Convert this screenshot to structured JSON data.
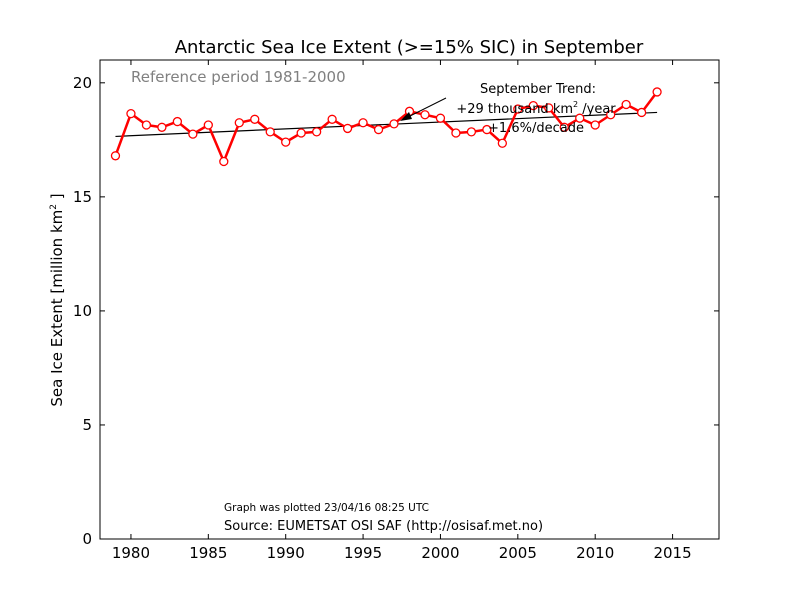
{
  "chart_data": {
    "type": "line",
    "title": "Antarctic Sea Ice Extent (>=15% SIC) in September",
    "subtitle": "Reference period 1981-2000",
    "xlabel": "",
    "ylabel": "Sea Ice Extent [million km",
    "ylabel_sup": "2",
    "ylabel_end": " ]",
    "xlim": [
      1978,
      2018
    ],
    "ylim": [
      0,
      21
    ],
    "xticks": [
      1980,
      1985,
      1990,
      1995,
      2000,
      2005,
      2010,
      2015
    ],
    "yticks": [
      0,
      5,
      10,
      15,
      20
    ],
    "grid": false,
    "series": [
      {
        "color": "#ff0000",
        "x": [
          1979,
          1980,
          1981,
          1982,
          1983,
          1984,
          1985,
          1986,
          1987,
          1988,
          1989,
          1990,
          1991,
          1992,
          1993,
          1994,
          1995,
          1996,
          1997,
          1998,
          1999,
          2000,
          2001,
          2002,
          2003,
          2004,
          2005,
          2006,
          2007,
          2008,
          2009,
          2010,
          2011,
          2012,
          2013,
          2014
        ],
        "y": [
          16.8,
          18.65,
          18.15,
          18.05,
          18.3,
          17.75,
          18.15,
          16.55,
          18.25,
          18.4,
          17.85,
          17.4,
          17.8,
          17.85,
          18.4,
          18.0,
          18.25,
          17.95,
          18.2,
          18.75,
          18.6,
          18.45,
          17.8,
          17.85,
          17.95,
          17.35,
          18.85,
          19.0,
          18.9,
          18.05,
          18.45,
          18.15,
          18.6,
          19.05,
          18.7,
          19.6
        ]
      }
    ],
    "trend": {
      "color": "#000000",
      "x": [
        1979,
        2014
      ],
      "y": [
        17.65,
        18.7
      ]
    },
    "annotation": {
      "lines": [
        "September Trend:",
        "+29 thousand km",
        " /year",
        "+1.6%/decade"
      ],
      "sup": "2"
    },
    "footer": {
      "plotted": "Graph was plotted 23/04/16 08:25 UTC",
      "source": "Source: EUMETSAT OSI SAF (http://osisaf.met.no)"
    }
  }
}
